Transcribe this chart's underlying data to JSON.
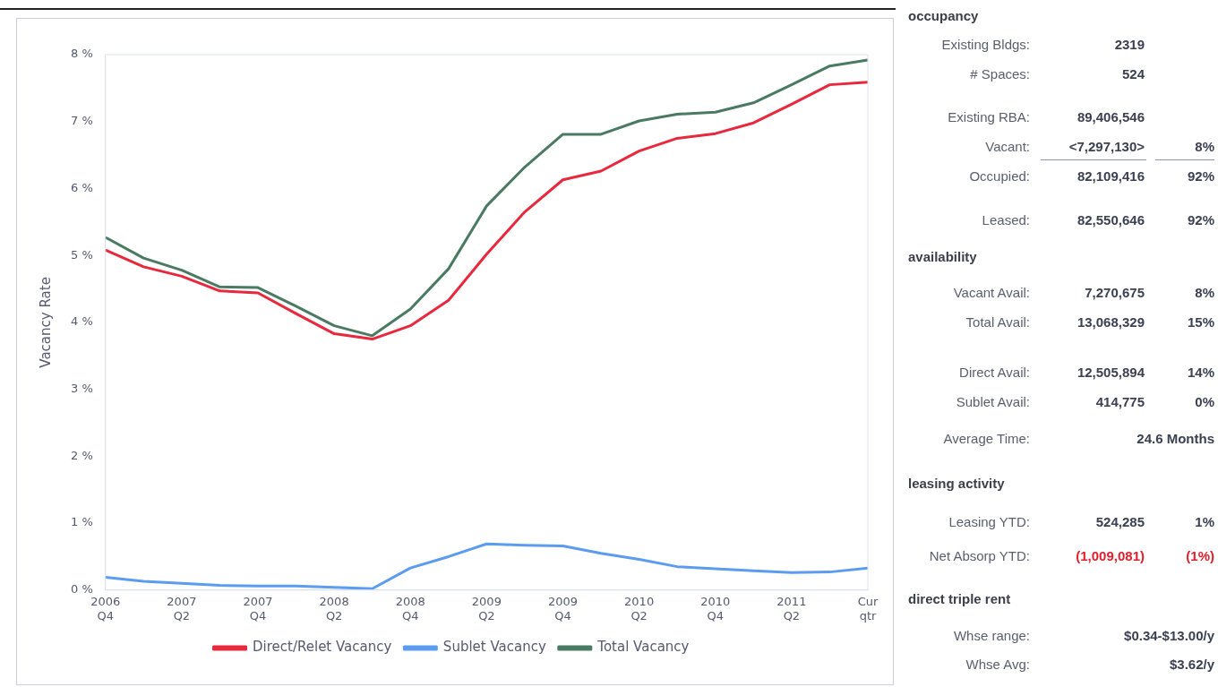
{
  "chart_data": [
    {
      "type": "line",
      "ylabel": "Vacancy Rate",
      "categories": [
        "2006 Q4",
        null,
        "2007 Q2",
        null,
        "2007 Q4",
        null,
        "2008 Q2",
        null,
        "2008 Q4",
        null,
        "2009 Q2",
        null,
        "2009 Q4",
        null,
        "2010 Q2",
        null,
        "2010 Q4",
        null,
        "2011 Q2",
        null,
        "Cur qtr"
      ],
      "series": [
        {
          "name": "Direct/Relet Vacancy",
          "color": "#e8283c",
          "values": [
            5.08,
            4.83,
            4.69,
            4.47,
            4.44,
            4.13,
            3.83,
            3.75,
            3.95,
            4.33,
            5.02,
            5.65,
            6.13,
            6.26,
            6.56,
            6.75,
            6.82,
            6.98,
            7.26,
            7.55,
            7.59
          ]
        },
        {
          "name": "Sublet Vacancy",
          "color": "#5b9cf0",
          "values": [
            0.19,
            0.13,
            0.1,
            0.07,
            0.06,
            0.06,
            0.04,
            0.02,
            0.33,
            0.5,
            0.69,
            0.67,
            0.66,
            0.55,
            0.46,
            0.35,
            0.32,
            0.29,
            0.26,
            0.27,
            0.33
          ]
        },
        {
          "name": "Total Vacancy",
          "color": "#4a7a62",
          "values": [
            5.27,
            4.96,
            4.78,
            4.53,
            4.52,
            4.24,
            3.95,
            3.8,
            4.2,
            4.8,
            5.74,
            6.32,
            6.81,
            6.81,
            7.01,
            7.11,
            7.14,
            7.28,
            7.55,
            7.83,
            7.92
          ]
        }
      ],
      "ylim": [
        0,
        8
      ],
      "yticks": [
        {
          "value": 0,
          "label": "0 %"
        },
        {
          "value": 1,
          "label": "1 %"
        },
        {
          "value": 2,
          "label": "2 %"
        },
        {
          "value": 3,
          "label": "3 %"
        },
        {
          "value": 4,
          "label": "4 %"
        },
        {
          "value": 5,
          "label": "5 %"
        },
        {
          "value": 6,
          "label": "6 %"
        },
        {
          "value": 7,
          "label": "7 %"
        },
        {
          "value": 8,
          "label": "8 %"
        }
      ],
      "grid": false,
      "legend": "bottom",
      "marker": "none",
      "line_style": "solid"
    },
    {
      "type": "other",
      "annotations": [
        "occupancy",
        "Existing Bldgs:",
        "2319",
        "# Spaces:",
        "524",
        "Existing RBA:",
        "89,406,546",
        "Vacant:",
        "<7,297,130>",
        "8%",
        "Occupied:",
        "82,109,416",
        "92%",
        "Leased:",
        "82,550,646",
        "92%",
        "availability",
        "Vacant Avail:",
        "7,270,675",
        "8%",
        "Total Avail:",
        "13,068,329",
        "15%",
        "Direct Avail:",
        "12,505,894",
        "14%",
        "Sublet Avail:",
        "414,775",
        "0%",
        "Average Time:",
        "24.6 Months",
        "leasing activity",
        "Leasing YTD:",
        "524,285",
        "1%",
        "Net Absorp YTD:",
        "(1,009,081)",
        "(1%)",
        "direct triple rent",
        "Whse range:",
        "$0.34-$13.00/y",
        "Whse Avg:",
        "$3.62/y"
      ]
    }
  ]
}
